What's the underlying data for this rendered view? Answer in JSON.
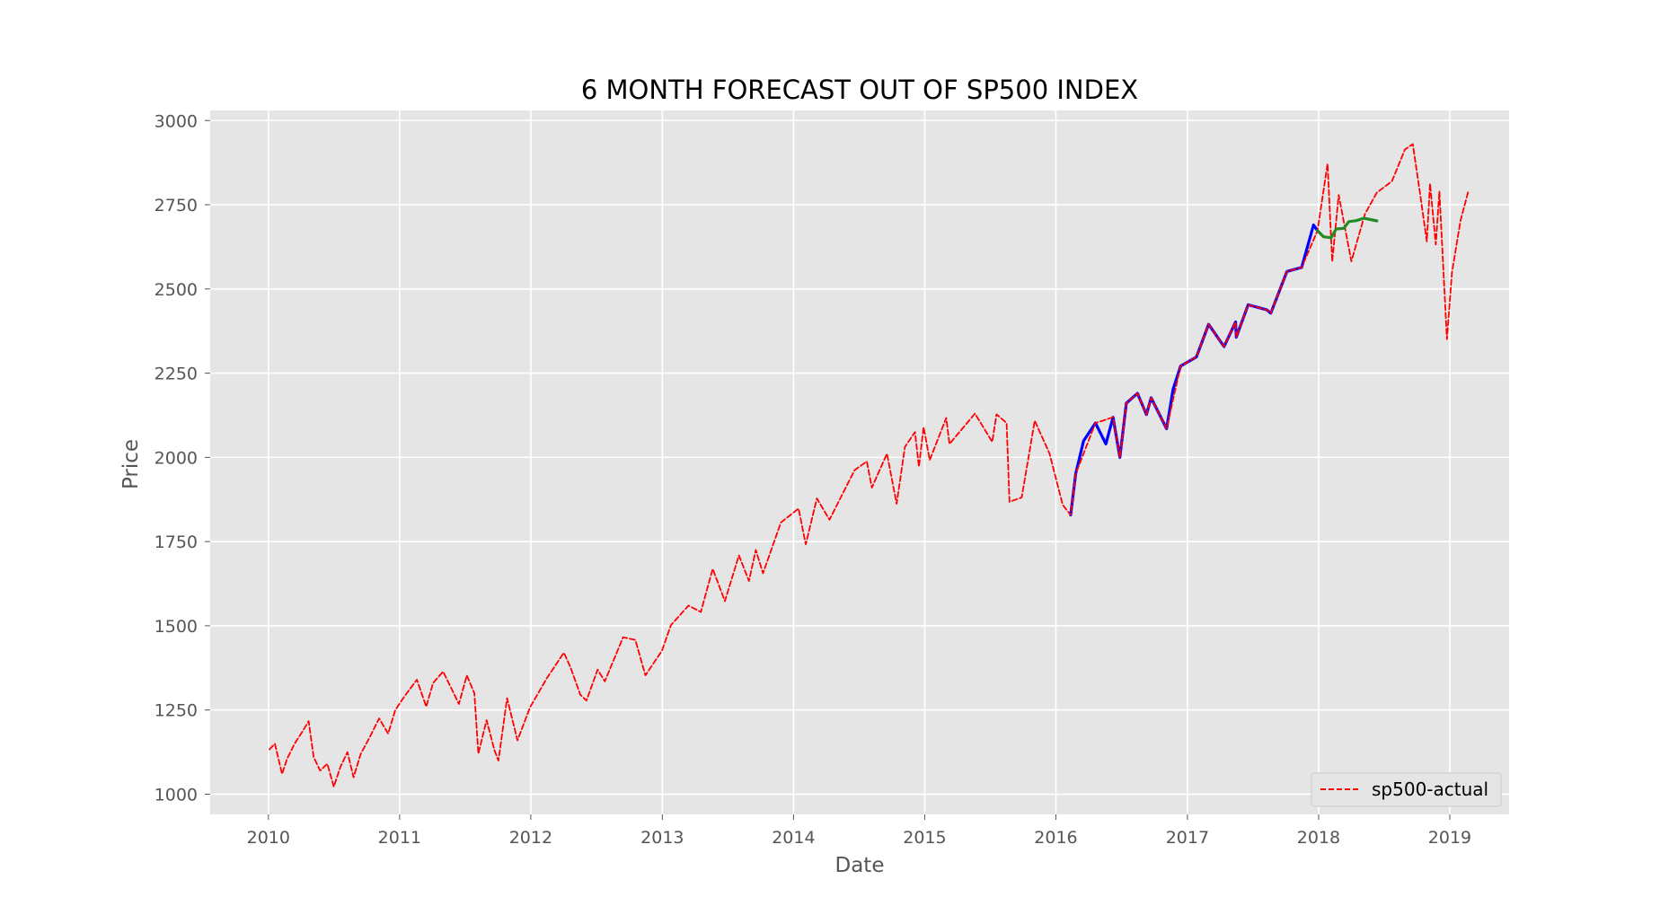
{
  "chart_data": {
    "type": "line",
    "title": "6 MONTH FORECAST OUT OF SP500 INDEX",
    "xlabel": "Date",
    "ylabel": "Price",
    "xlim": [
      "2009-07-23",
      "2019-06-15"
    ],
    "ylim": [
      940,
      3030
    ],
    "x_ticks": [
      "2010",
      "2011",
      "2012",
      "2013",
      "2014",
      "2015",
      "2016",
      "2017",
      "2018",
      "2019"
    ],
    "y_ticks": [
      1000,
      1250,
      1500,
      1750,
      2000,
      2250,
      2500,
      2750,
      3000
    ],
    "grid": true,
    "legend": {
      "position": "bottom-right",
      "entries": [
        {
          "label": "sp500-actual",
          "series": "actual"
        }
      ]
    },
    "series": [
      {
        "key": "actual",
        "name": "sp500-actual",
        "color": "#ff0000",
        "style": "dashed",
        "points": [
          [
            "2010-01-04",
            1133
          ],
          [
            "2010-01-19",
            1150
          ],
          [
            "2010-02-08",
            1060
          ],
          [
            "2010-02-22",
            1105
          ],
          [
            "2010-03-15",
            1150
          ],
          [
            "2010-04-05",
            1185
          ],
          [
            "2010-04-23",
            1217
          ],
          [
            "2010-05-07",
            1110
          ],
          [
            "2010-05-25",
            1070
          ],
          [
            "2010-06-14",
            1090
          ],
          [
            "2010-07-02",
            1022
          ],
          [
            "2010-07-20",
            1080
          ],
          [
            "2010-08-09",
            1125
          ],
          [
            "2010-08-26",
            1050
          ],
          [
            "2010-09-15",
            1120
          ],
          [
            "2010-10-08",
            1165
          ],
          [
            "2010-11-05",
            1225
          ],
          [
            "2010-11-30",
            1180
          ],
          [
            "2010-12-20",
            1250
          ],
          [
            "2011-01-14",
            1290
          ],
          [
            "2011-02-18",
            1340
          ],
          [
            "2011-03-16",
            1260
          ],
          [
            "2011-04-04",
            1330
          ],
          [
            "2011-05-02",
            1364
          ],
          [
            "2011-06-15",
            1268
          ],
          [
            "2011-07-07",
            1353
          ],
          [
            "2011-07-28",
            1300
          ],
          [
            "2011-08-08",
            1120
          ],
          [
            "2011-08-31",
            1220
          ],
          [
            "2011-09-22",
            1130
          ],
          [
            "2011-10-03",
            1100
          ],
          [
            "2011-10-27",
            1285
          ],
          [
            "2011-11-25",
            1160
          ],
          [
            "2011-12-30",
            1258
          ],
          [
            "2012-02-15",
            1345
          ],
          [
            "2012-04-02",
            1420
          ],
          [
            "2012-04-20",
            1378
          ],
          [
            "2012-05-18",
            1295
          ],
          [
            "2012-06-04",
            1278
          ],
          [
            "2012-07-05",
            1370
          ],
          [
            "2012-07-25",
            1335
          ],
          [
            "2012-09-14",
            1466
          ],
          [
            "2012-10-18",
            1458
          ],
          [
            "2012-11-15",
            1353
          ],
          [
            "2012-12-31",
            1426
          ],
          [
            "2013-01-25",
            1502
          ],
          [
            "2013-03-15",
            1560
          ],
          [
            "2013-04-18",
            1541
          ],
          [
            "2013-05-21",
            1669
          ],
          [
            "2013-06-24",
            1573
          ],
          [
            "2013-08-02",
            1709
          ],
          [
            "2013-08-30",
            1633
          ],
          [
            "2013-09-18",
            1725
          ],
          [
            "2013-10-08",
            1656
          ],
          [
            "2013-11-27",
            1807
          ],
          [
            "2014-01-15",
            1848
          ],
          [
            "2014-02-04",
            1742
          ],
          [
            "2014-03-07",
            1878
          ],
          [
            "2014-04-11",
            1815
          ],
          [
            "2014-06-20",
            1962
          ],
          [
            "2014-07-24",
            1988
          ],
          [
            "2014-08-07",
            1910
          ],
          [
            "2014-09-18",
            2011
          ],
          [
            "2014-10-15",
            1862
          ],
          [
            "2014-11-07",
            2031
          ],
          [
            "2014-12-05",
            2075
          ],
          [
            "2014-12-16",
            1972
          ],
          [
            "2014-12-29",
            2090
          ],
          [
            "2015-01-15",
            1992
          ],
          [
            "2015-03-02",
            2117
          ],
          [
            "2015-03-11",
            2040
          ],
          [
            "2015-05-21",
            2130
          ],
          [
            "2015-07-08",
            2046
          ],
          [
            "2015-07-20",
            2128
          ],
          [
            "2015-08-17",
            2102
          ],
          [
            "2015-08-25",
            1868
          ],
          [
            "2015-09-28",
            1881
          ],
          [
            "2015-11-03",
            2109
          ],
          [
            "2015-12-14",
            2012
          ],
          [
            "2016-01-20",
            1859
          ],
          [
            "2016-02-11",
            1829
          ],
          [
            "2016-02-25",
            1951
          ],
          [
            "2016-04-20",
            2102
          ],
          [
            "2016-06-08",
            2119
          ],
          [
            "2016-06-27",
            2000
          ],
          [
            "2016-07-15",
            2161
          ],
          [
            "2016-08-15",
            2190
          ],
          [
            "2016-09-09",
            2127
          ],
          [
            "2016-09-22",
            2177
          ],
          [
            "2016-11-04",
            2085
          ],
          [
            "2016-12-13",
            2271
          ],
          [
            "2017-01-26",
            2298
          ],
          [
            "2017-03-01",
            2395
          ],
          [
            "2017-04-13",
            2329
          ],
          [
            "2017-05-15",
            2402
          ],
          [
            "2017-05-17",
            2357
          ],
          [
            "2017-06-19",
            2453
          ],
          [
            "2017-08-10",
            2438
          ],
          [
            "2017-08-21",
            2428
          ],
          [
            "2017-10-05",
            2552
          ],
          [
            "2017-11-15",
            2564
          ],
          [
            "2017-12-29",
            2673
          ],
          [
            "2018-01-26",
            2872
          ],
          [
            "2018-02-08",
            2581
          ],
          [
            "2018-02-26",
            2779
          ],
          [
            "2018-04-02",
            2582
          ],
          [
            "2018-05-10",
            2723
          ],
          [
            "2018-06-12",
            2786
          ],
          [
            "2018-07-24",
            2820
          ],
          [
            "2018-08-29",
            2914
          ],
          [
            "2018-09-20",
            2930
          ],
          [
            "2018-10-10",
            2785
          ],
          [
            "2018-10-29",
            2641
          ],
          [
            "2018-11-07",
            2813
          ],
          [
            "2018-11-23",
            2632
          ],
          [
            "2018-12-03",
            2790
          ],
          [
            "2018-12-24",
            2351
          ],
          [
            "2019-01-07",
            2549
          ],
          [
            "2019-01-31",
            2704
          ],
          [
            "2019-02-22",
            2792
          ]
        ]
      },
      {
        "key": "fitted",
        "color": "#0000ff",
        "style": "solid",
        "points": [
          [
            "2016-02-11",
            1829
          ],
          [
            "2016-02-25",
            1951
          ],
          [
            "2016-03-18",
            2049
          ],
          [
            "2016-04-20",
            2102
          ],
          [
            "2016-05-19",
            2040
          ],
          [
            "2016-06-08",
            2119
          ],
          [
            "2016-06-27",
            2000
          ],
          [
            "2016-07-15",
            2161
          ],
          [
            "2016-08-15",
            2190
          ],
          [
            "2016-09-09",
            2127
          ],
          [
            "2016-09-22",
            2177
          ],
          [
            "2016-11-04",
            2085
          ],
          [
            "2016-11-22",
            2202
          ],
          [
            "2016-12-13",
            2271
          ],
          [
            "2017-01-26",
            2298
          ],
          [
            "2017-03-01",
            2395
          ],
          [
            "2017-04-13",
            2329
          ],
          [
            "2017-05-15",
            2402
          ],
          [
            "2017-05-17",
            2357
          ],
          [
            "2017-06-19",
            2453
          ],
          [
            "2017-08-10",
            2438
          ],
          [
            "2017-08-21",
            2428
          ],
          [
            "2017-10-05",
            2552
          ],
          [
            "2017-11-15",
            2564
          ],
          [
            "2017-12-18",
            2690
          ],
          [
            "2017-12-29",
            2673
          ]
        ]
      },
      {
        "key": "forecast",
        "color": "#228b22",
        "style": "solid",
        "points": [
          [
            "2017-12-29",
            2673
          ],
          [
            "2018-01-15",
            2655
          ],
          [
            "2018-02-05",
            2652
          ],
          [
            "2018-02-19",
            2678
          ],
          [
            "2018-03-12",
            2680
          ],
          [
            "2018-03-26",
            2700
          ],
          [
            "2018-04-16",
            2703
          ],
          [
            "2018-05-07",
            2710
          ],
          [
            "2018-05-25",
            2706
          ],
          [
            "2018-06-12",
            2702
          ]
        ]
      }
    ]
  }
}
